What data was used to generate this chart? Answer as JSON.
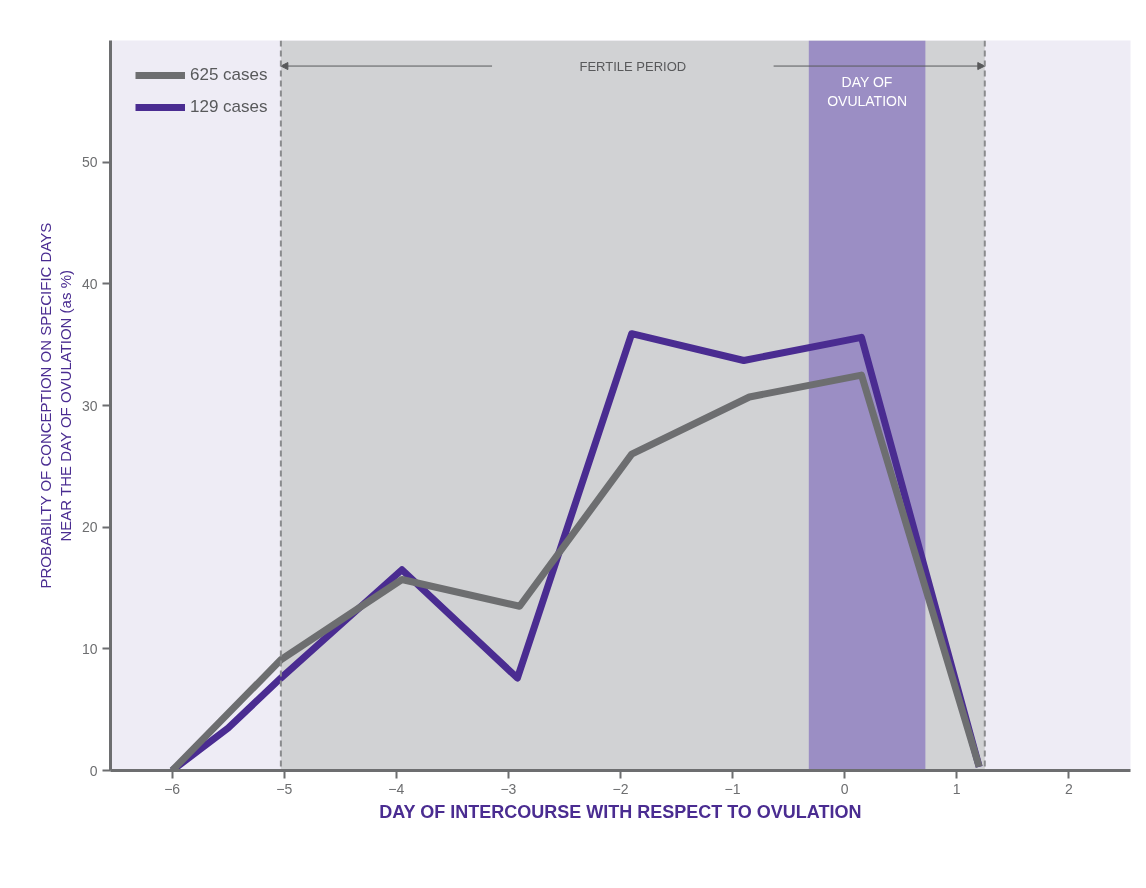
{
  "chart_data": {
    "type": "line",
    "xlabel": "DAY OF INTERCOURSE WITH RESPECT TO OVULATION",
    "ylabel": "PROBABILTY OF CONCEPTION ON SPECIFIC DAYS\nNEAR THE DAY OF OVULATION (as %)",
    "xlim": [
      -6.55,
      2.55
    ],
    "ylim": [
      0,
      60
    ],
    "xticks": [
      -6,
      -5,
      -4,
      -3,
      -2,
      -1,
      0,
      1,
      2
    ],
    "yticks": [
      0,
      10,
      20,
      30,
      40,
      50
    ],
    "grid": false,
    "legend": "top left",
    "marker": "none",
    "line_style": "solid",
    "series": [
      {
        "name": "625 cases",
        "color": "#6d6e70",
        "x": [
          -6,
          -5.03,
          -3.95,
          -2.9,
          -1.9,
          -0.85,
          0.15,
          1.2
        ],
        "values": [
          0,
          9.1,
          15.7,
          13.5,
          26,
          30.7,
          32.5,
          0.3
        ]
      },
      {
        "name": "129 cases",
        "color": "#4a2c91",
        "x": [
          -6,
          -5.5,
          -5.03,
          -3.95,
          -2.92,
          -1.9,
          -0.9,
          0.15,
          1.2
        ],
        "values": [
          0,
          3.5,
          7.6,
          16.5,
          7.6,
          35.9,
          33.7,
          35.6,
          0.3
        ]
      }
    ],
    "bands": [
      {
        "axis": "x",
        "from": -5.03,
        "to": 1.25,
        "label": "FERTILE PERIOD",
        "color": "#d1d2d4"
      },
      {
        "axis": "x",
        "from": -0.32,
        "to": 0.72,
        "label": "DAY OF OVULATION",
        "color": "#9b8ec4"
      }
    ],
    "ref_lines": [
      {
        "axis": "x",
        "value": -5.03,
        "color": "#8a8b8d",
        "line_style": "dashed"
      },
      {
        "axis": "x",
        "value": 1.25,
        "color": "#8a8b8d",
        "line_style": "dashed"
      }
    ]
  }
}
